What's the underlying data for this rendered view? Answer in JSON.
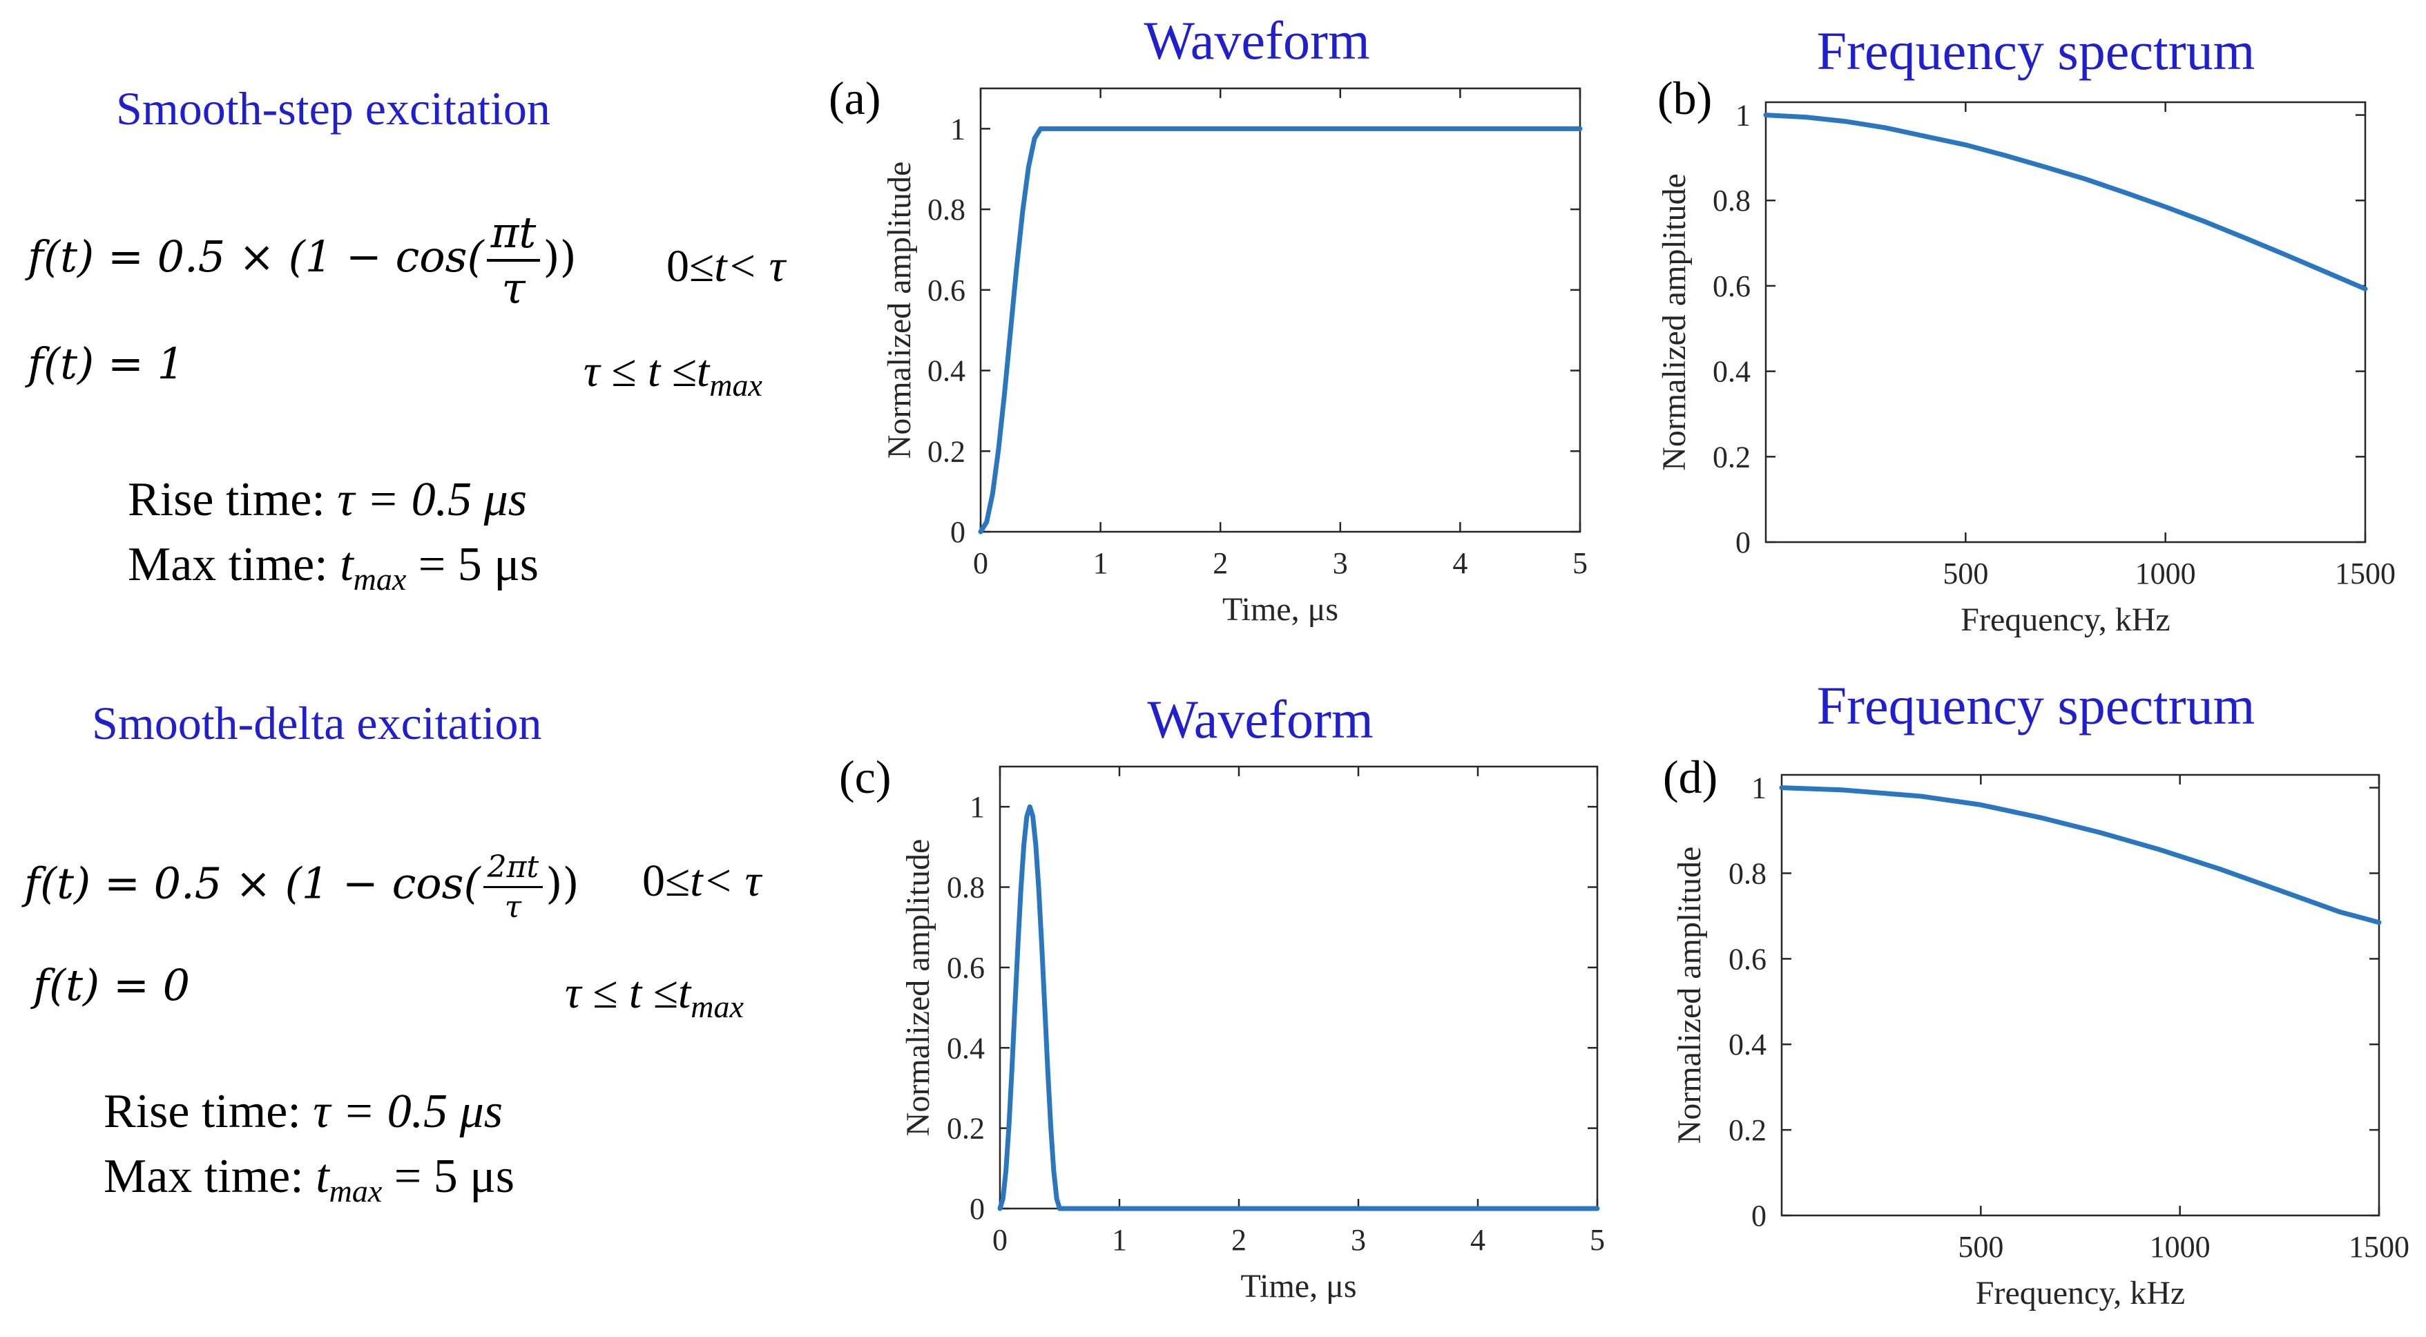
{
  "text": {
    "step": {
      "title": "Smooth-step excitation",
      "eq1_lhs": "f(t) = 0.5 × (1 − cos(",
      "eq1_num": "πt",
      "eq1_den": "τ",
      "eq1_rhs": "))",
      "eq1_cond_a": "0≤",
      "eq1_cond_t": "t",
      "eq1_cond_b": "< τ",
      "eq2": "f(t) = 1",
      "eq2_cond_a": "τ ≤ t ≤t",
      "eq2_cond_sub": "max",
      "rise_label": "Rise time:",
      "rise_value": "τ = 0.5 μs",
      "max_label": "Max time:",
      "max_t": "t",
      "max_sub": "max",
      "max_value": " = 5 μs"
    },
    "delta": {
      "title": "Smooth-delta excitation",
      "eq1_lhs": "f(t) = 0.5 × (1 − cos(",
      "eq1_num": "2πt",
      "eq1_den": "τ",
      "eq1_rhs": "))",
      "eq1_cond_a": "0≤",
      "eq1_cond_t": "t",
      "eq1_cond_b": "< τ",
      "eq2": "f(t) = 0",
      "eq2_cond_a": "τ ≤ t ≤t",
      "eq2_cond_sub": "max",
      "rise_label": "Rise time:",
      "rise_value": "τ = 0.5 μs",
      "max_label": "Max time:",
      "max_t": "t",
      "max_sub": "max",
      "max_value": " = 5 μs"
    }
  },
  "colors": {
    "line": "#2a77c0",
    "title": "#1f1fd0",
    "axis": "#262626"
  },
  "chart_data": [
    {
      "id": "a",
      "panel_label": "(a)",
      "type": "line",
      "title": "Waveform",
      "xlabel": "Time, μs",
      "ylabel": "Normalized amplitude",
      "xlim": [
        0,
        5
      ],
      "ylim": [
        0,
        1.1
      ],
      "xticks": [
        0,
        1,
        2,
        3,
        4,
        5
      ],
      "yticks": [
        0,
        0.2,
        0.4,
        0.6,
        0.8,
        1
      ],
      "xticklabels": [
        "0",
        "1",
        "2",
        "3",
        "4",
        "5"
      ],
      "yticklabels": [
        "0",
        "0.2",
        "0.4",
        "0.6",
        "0.8",
        "1"
      ],
      "series": [
        {
          "name": "smooth-step",
          "x": [
            0,
            0.05,
            0.1,
            0.15,
            0.2,
            0.25,
            0.3,
            0.35,
            0.4,
            0.45,
            0.5,
            5
          ],
          "y": [
            0,
            0.024,
            0.095,
            0.206,
            0.345,
            0.5,
            0.655,
            0.794,
            0.905,
            0.976,
            1,
            1
          ]
        }
      ]
    },
    {
      "id": "b",
      "panel_label": "(b)",
      "type": "line",
      "title": "Frequency spectrum",
      "xlabel": "Frequency, kHz",
      "ylabel": "Normalized amplitude",
      "xlim": [
        0,
        1500
      ],
      "ylim": [
        0,
        1.03
      ],
      "xticks": [
        500,
        1000,
        1500
      ],
      "yticks": [
        0,
        0.2,
        0.4,
        0.6,
        0.8,
        1
      ],
      "xticklabels": [
        "500",
        "1000",
        "1500"
      ],
      "yticklabels": [
        "0",
        "0.2",
        "0.4",
        "0.6",
        "0.8",
        "1"
      ],
      "series": [
        {
          "name": "spectrum",
          "x": [
            0,
            100,
            200,
            300,
            400,
            500,
            600,
            700,
            800,
            900,
            1000,
            1100,
            1200,
            1300,
            1400,
            1500
          ],
          "y": [
            1.0,
            0.995,
            0.985,
            0.97,
            0.95,
            0.93,
            0.905,
            0.878,
            0.85,
            0.818,
            0.785,
            0.75,
            0.712,
            0.673,
            0.633,
            0.593
          ]
        }
      ]
    },
    {
      "id": "c",
      "panel_label": "(c)",
      "type": "line",
      "title": "Waveform",
      "xlabel": "Time, μs",
      "ylabel": "Normalized amplitude",
      "xlim": [
        0,
        5
      ],
      "ylim": [
        0,
        1.1
      ],
      "xticks": [
        0,
        1,
        2,
        3,
        4,
        5
      ],
      "yticks": [
        0,
        0.2,
        0.4,
        0.6,
        0.8,
        1
      ],
      "xticklabels": [
        "0",
        "1",
        "2",
        "3",
        "4",
        "5"
      ],
      "yticklabels": [
        "0",
        "0.2",
        "0.4",
        "0.6",
        "0.8",
        "1"
      ],
      "series": [
        {
          "name": "smooth-delta",
          "x": [
            0,
            0.025,
            0.05,
            0.075,
            0.1,
            0.125,
            0.15,
            0.175,
            0.2,
            0.225,
            0.25,
            0.275,
            0.3,
            0.325,
            0.35,
            0.375,
            0.4,
            0.425,
            0.45,
            0.475,
            0.5,
            5
          ],
          "y": [
            0,
            0.024,
            0.095,
            0.206,
            0.345,
            0.5,
            0.655,
            0.794,
            0.905,
            0.976,
            1,
            0.976,
            0.905,
            0.794,
            0.655,
            0.5,
            0.345,
            0.206,
            0.095,
            0.024,
            0,
            0
          ]
        }
      ]
    },
    {
      "id": "d",
      "panel_label": "(d)",
      "type": "line",
      "title": "Frequency spectrum",
      "xlabel": "Frequency, kHz",
      "ylabel": "Normalized amplitude",
      "xlim": [
        0,
        1500
      ],
      "ylim": [
        0,
        1.03
      ],
      "xticks": [
        500,
        1000,
        1500
      ],
      "yticks": [
        0,
        0.2,
        0.4,
        0.6,
        0.8,
        1
      ],
      "xticklabels": [
        "500",
        "1000",
        "1500"
      ],
      "yticklabels": [
        "0",
        "0.2",
        "0.4",
        "0.6",
        "0.8",
        "1"
      ],
      "series": [
        {
          "name": "spectrum",
          "x": [
            0,
            150,
            350,
            500,
            650,
            800,
            950,
            1100,
            1250,
            1400,
            1500
          ],
          "y": [
            1.0,
            0.995,
            0.98,
            0.96,
            0.93,
            0.895,
            0.855,
            0.81,
            0.76,
            0.71,
            0.685
          ]
        }
      ]
    }
  ]
}
